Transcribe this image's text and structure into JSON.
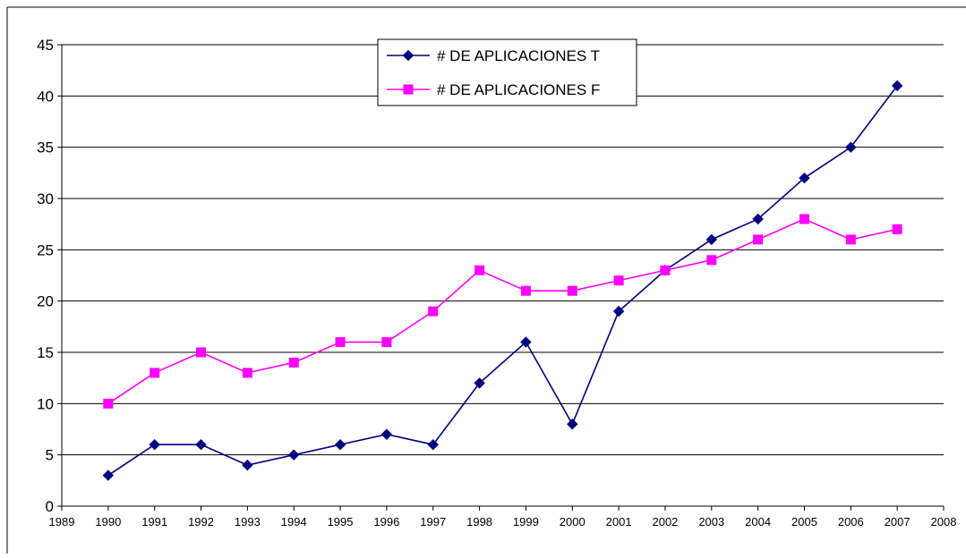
{
  "chart_data": {
    "type": "line",
    "title": "",
    "xlabel": "",
    "ylabel": "",
    "xlim": [
      1989,
      2008
    ],
    "ylim": [
      0,
      45
    ],
    "x_ticks": [
      1989,
      1990,
      1991,
      1992,
      1993,
      1994,
      1995,
      1996,
      1997,
      1998,
      1999,
      2000,
      2001,
      2002,
      2003,
      2004,
      2005,
      2006,
      2007,
      2008
    ],
    "y_ticks": [
      0,
      5,
      10,
      15,
      20,
      25,
      30,
      35,
      40,
      45
    ],
    "grid": "horizontal",
    "legend_position": "top-center",
    "x": [
      1990,
      1991,
      1992,
      1993,
      1994,
      1995,
      1996,
      1997,
      1998,
      1999,
      2000,
      2001,
      2002,
      2003,
      2004,
      2005,
      2006,
      2007
    ],
    "series": [
      {
        "name": "# DE APLICACIONES T",
        "color": "#000080",
        "marker": "diamond",
        "values": [
          3,
          6,
          6,
          4,
          5,
          6,
          7,
          6,
          12,
          16,
          8,
          19,
          23,
          26,
          28,
          32,
          35,
          41
        ]
      },
      {
        "name": "# DE APLICACIONES F",
        "color": "#FF00FF",
        "marker": "square",
        "values": [
          10,
          13,
          15,
          13,
          14,
          16,
          16,
          19,
          23,
          21,
          21,
          22,
          23,
          24,
          26,
          28,
          26,
          27
        ]
      }
    ]
  }
}
